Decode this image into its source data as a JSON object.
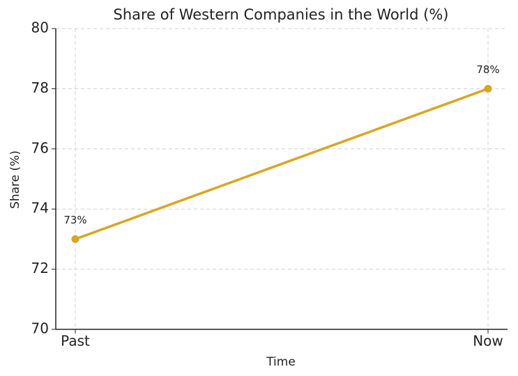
{
  "chart_data": {
    "type": "line",
    "title": "Share of Western Companies in the World (%)",
    "x_label": "Time",
    "y_label": "Share (%)",
    "categories": [
      "Past",
      "Now"
    ],
    "values": [
      73,
      78
    ],
    "value_labels": [
      "73%",
      "78%"
    ],
    "color": "#daa520",
    "ylim": [
      70,
      80
    ],
    "yticks": [
      70,
      72,
      74,
      76,
      78,
      80
    ],
    "grid": true
  }
}
